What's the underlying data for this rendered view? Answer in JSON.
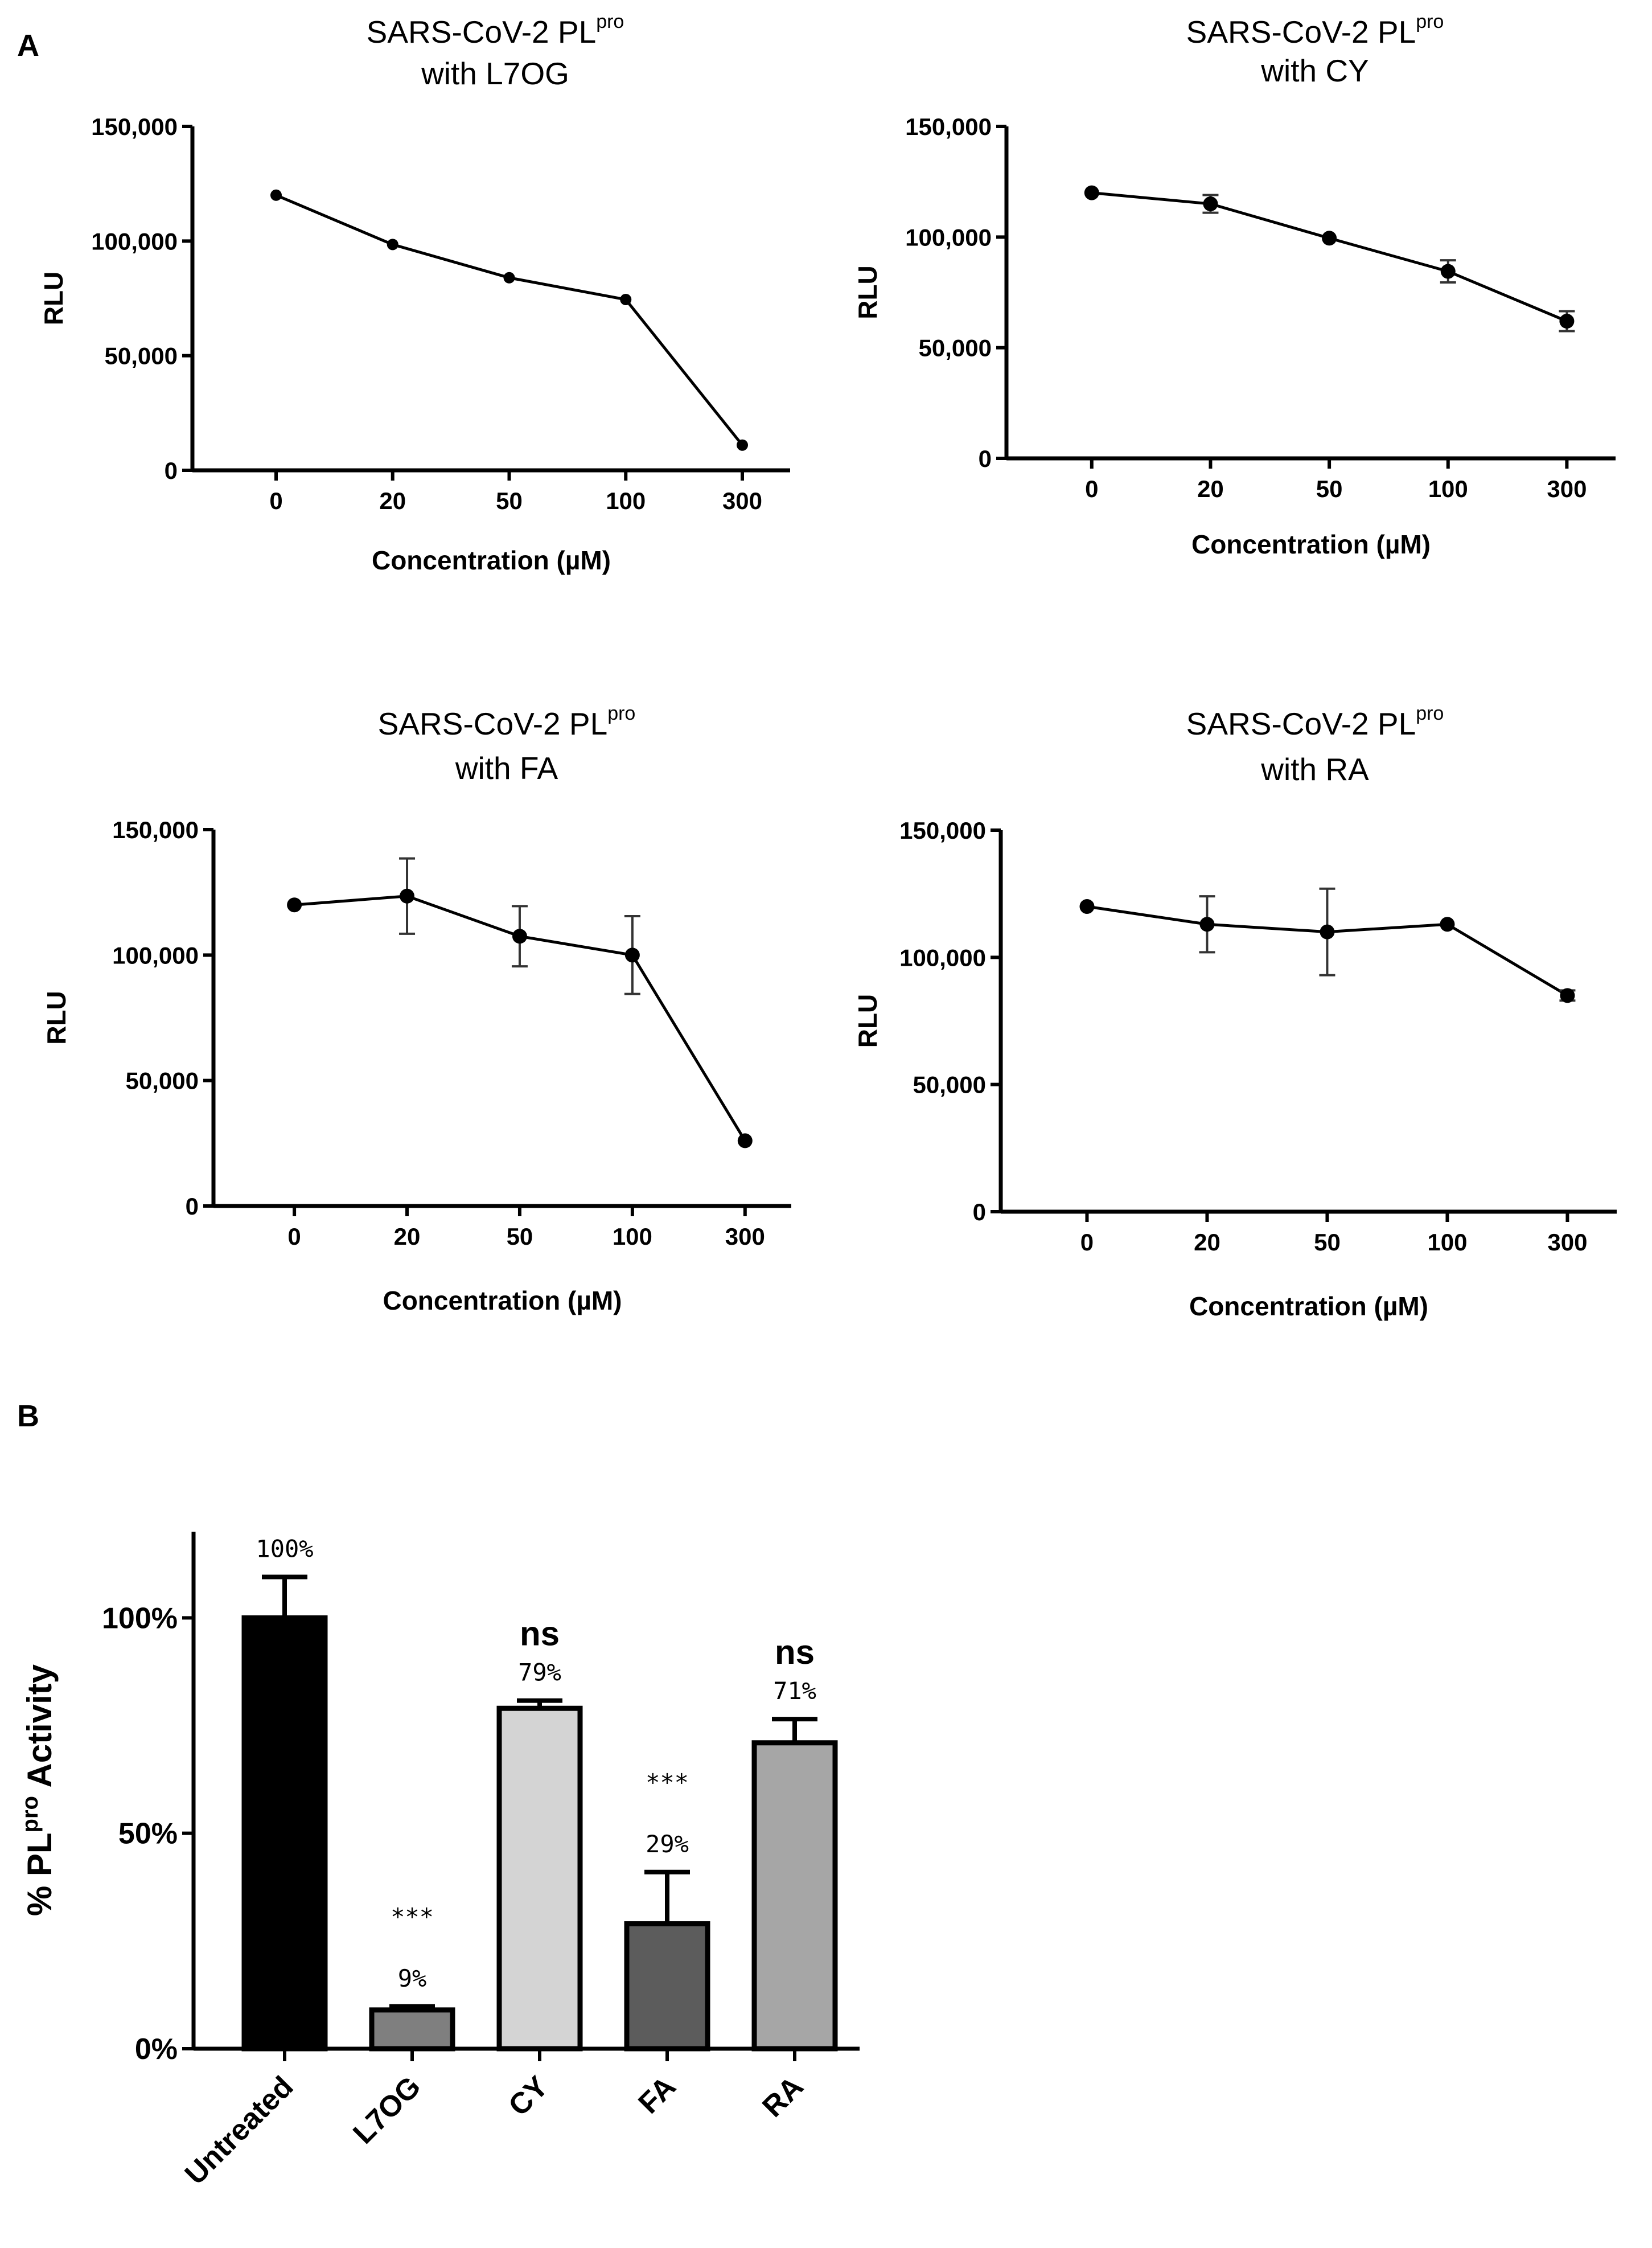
{
  "panels": {
    "a_label": "A",
    "b_label": "B"
  },
  "chart_data": [
    {
      "type": "line",
      "title_main": "SARS-CoV-2 PL",
      "title_sup": "pro",
      "title_line2": "with L7OG",
      "xlabel": "Concentration (µM)",
      "ylabel": "RLU",
      "categories": [
        "0",
        "20",
        "50",
        "100",
        "300"
      ],
      "values": [
        120000,
        98500,
        84000,
        74500,
        11000
      ],
      "errors": [
        0,
        0,
        0,
        0,
        0
      ],
      "ylim": [
        0,
        150000
      ],
      "yticks": [
        0,
        50000,
        100000,
        150000
      ],
      "ytick_labels": [
        "0",
        "50,000",
        "100,000",
        "150,000"
      ]
    },
    {
      "type": "line",
      "title_main": "SARS-CoV-2 PL",
      "title_sup": "pro",
      "title_line2": "with CY",
      "xlabel": "Concentration (µM)",
      "ylabel": "RLU",
      "categories": [
        "0",
        "20",
        "50",
        "100",
        "300"
      ],
      "values": [
        120000,
        115000,
        99500,
        84500,
        62000
      ],
      "errors": [
        0,
        4000,
        0,
        5000,
        4500
      ],
      "ylim": [
        0,
        150000
      ],
      "yticks": [
        0,
        50000,
        100000,
        150000
      ],
      "ytick_labels": [
        "0",
        "50,000",
        "100,000",
        "150,000"
      ]
    },
    {
      "type": "line",
      "title_main": "SARS-CoV-2 PL",
      "title_sup": "pro",
      "title_line2": "with FA",
      "xlabel": "Concentration (µM)",
      "ylabel": "RLU",
      "categories": [
        "0",
        "20",
        "50",
        "100",
        "300"
      ],
      "values": [
        120000,
        123500,
        107500,
        100000,
        26000
      ],
      "errors": [
        0,
        15000,
        12000,
        15500,
        0
      ],
      "ylim": [
        0,
        150000
      ],
      "yticks": [
        0,
        50000,
        100000,
        150000
      ],
      "ytick_labels": [
        "0",
        "50,000",
        "100,000",
        "150,000"
      ]
    },
    {
      "type": "line",
      "title_main": "SARS-CoV-2 PL",
      "title_sup": "pro",
      "title_line2": "with RA",
      "xlabel": "Concentration (µM)",
      "ylabel": "RLU",
      "categories": [
        "0",
        "20",
        "50",
        "100",
        "300"
      ],
      "values": [
        120000,
        113000,
        110000,
        113000,
        85000
      ],
      "errors": [
        0,
        11000,
        17000,
        0,
        2000
      ],
      "ylim": [
        0,
        150000
      ],
      "yticks": [
        0,
        50000,
        100000,
        150000
      ],
      "ytick_labels": [
        "0",
        "50,000",
        "100,000",
        "150,000"
      ]
    },
    {
      "type": "bar",
      "ylabel_prefix": "% PL",
      "ylabel_sup": "pro",
      "ylabel_suffix": " Activity",
      "categories": [
        "Untreated",
        "L7OG",
        "CY",
        "FA",
        "RA"
      ],
      "values": [
        100,
        9,
        79,
        29,
        71
      ],
      "errors": [
        9.5,
        0.8,
        1.8,
        12,
        5.5
      ],
      "data_labels": [
        "100%",
        "9%",
        "79%",
        "29%",
        "71%"
      ],
      "significance": [
        "",
        "***",
        "ns",
        "***",
        "ns"
      ],
      "bar_colors": [
        "#000000",
        "#7f7f7f",
        "#d4d4d4",
        "#5c5c5c",
        "#a6a6a6"
      ],
      "ylim": [
        0,
        120
      ],
      "yticks": [
        0,
        50,
        100
      ],
      "ytick_labels": [
        "0%",
        "50%",
        "100%"
      ]
    }
  ]
}
